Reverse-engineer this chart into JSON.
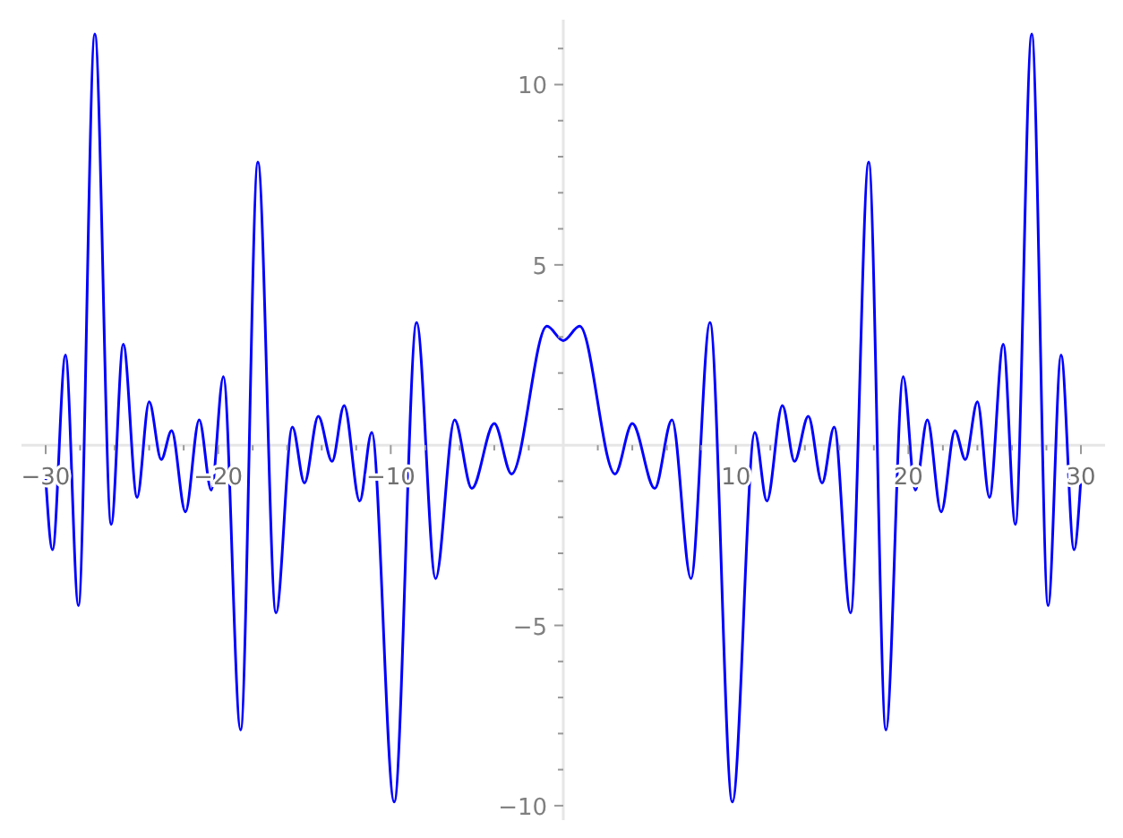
{
  "chart_data": {
    "type": "line",
    "xlim": [
      -31.4,
      31.4
    ],
    "ylim": [
      -10.4,
      11.8
    ],
    "xticks": [
      -30,
      {
        "value": -28,
        "label": null
      },
      {
        "value": -26,
        "label": null
      },
      {
        "value": -24,
        "label": null
      },
      {
        "value": -22,
        "label": null
      },
      -20,
      {
        "value": -18,
        "label": null
      },
      {
        "value": -16,
        "label": null
      },
      {
        "value": -14,
        "label": null
      },
      {
        "value": -12,
        "label": null
      },
      -10,
      {
        "value": -8,
        "label": null
      },
      {
        "value": -6,
        "label": null
      },
      {
        "value": -4,
        "label": null
      },
      {
        "value": -2,
        "label": null
      },
      {
        "value": 2,
        "label": null
      },
      {
        "value": 4,
        "label": null
      },
      {
        "value": 6,
        "label": null
      },
      {
        "value": 8,
        "label": null
      },
      10,
      {
        "value": 12,
        "label": null
      },
      {
        "value": 14,
        "label": null
      },
      {
        "value": 16,
        "label": null
      },
      {
        "value": 18,
        "label": null
      },
      20,
      {
        "value": 22,
        "label": null
      },
      {
        "value": 24,
        "label": null
      },
      {
        "value": 26,
        "label": null
      },
      {
        "value": 28,
        "label": null
      },
      30
    ],
    "yticks": [
      -10,
      {
        "value": -9,
        "label": null
      },
      {
        "value": -8,
        "label": null
      },
      {
        "value": -7,
        "label": null
      },
      {
        "value": -6,
        "label": null
      },
      -5,
      {
        "value": -4,
        "label": null
      },
      {
        "value": -3,
        "label": null
      },
      {
        "value": -2,
        "label": null
      },
      {
        "value": -1,
        "label": null
      },
      {
        "value": 1,
        "label": null
      },
      {
        "value": 2,
        "label": null
      },
      {
        "value": 3,
        "label": null
      },
      {
        "value": 4,
        "label": null
      },
      5,
      {
        "value": 6,
        "label": null
      },
      {
        "value": 7,
        "label": null
      },
      {
        "value": 8,
        "label": null
      },
      {
        "value": 9,
        "label": null
      },
      10,
      {
        "value": 11,
        "label": null
      }
    ],
    "grid": false,
    "marker": "none",
    "line_style": "solid",
    "series": [
      {
        "color": "#0000ff",
        "x": [
          -30,
          -29.6,
          -28.85,
          -28.1,
          -27.15,
          -26.2,
          -25.5,
          -24.7,
          -24.0,
          -23.3,
          -22.7,
          -21.9,
          -21.1,
          -20.4,
          -19.7,
          -18.7,
          -17.7,
          -16.65,
          -15.7,
          -15.0,
          -14.2,
          -13.4,
          -12.7,
          -11.8,
          -11.1,
          -9.8,
          -8.5,
          -7.4,
          -6.3,
          -5.3,
          -4.0,
          -3.0,
          -0.95,
          0,
          0.95,
          3.0,
          4.0,
          5.3,
          6.3,
          7.4,
          8.5,
          9.8,
          11.1,
          11.8,
          12.7,
          13.4,
          14.2,
          15.0,
          15.7,
          16.65,
          17.7,
          18.7,
          19.7,
          20.4,
          21.1,
          21.9,
          22.7,
          23.3,
          24.0,
          24.7,
          25.5,
          26.2,
          27.15,
          28.1,
          28.85,
          29.6,
          30
        ],
        "values": [
          -0.9,
          -2.9,
          2.5,
          -4.45,
          11.4,
          -2.2,
          2.8,
          -1.45,
          1.2,
          -0.4,
          0.4,
          -1.85,
          0.7,
          -1.25,
          1.9,
          -7.9,
          7.85,
          -4.65,
          0.5,
          -1.05,
          0.8,
          -0.45,
          1.1,
          -1.55,
          0.35,
          -9.9,
          3.4,
          -3.7,
          0.7,
          -1.2,
          0.6,
          -0.8,
          3.3,
          2.9,
          3.3,
          -0.8,
          0.6,
          -1.2,
          0.7,
          -3.7,
          3.4,
          -9.9,
          0.35,
          -1.55,
          1.1,
          -0.45,
          0.8,
          -1.05,
          0.5,
          -4.65,
          7.85,
          -7.9,
          1.9,
          -1.25,
          0.7,
          -1.85,
          0.4,
          -0.4,
          1.2,
          -1.45,
          2.8,
          -2.2,
          11.4,
          -4.45,
          2.5,
          -2.9,
          -0.9
        ]
      }
    ]
  }
}
